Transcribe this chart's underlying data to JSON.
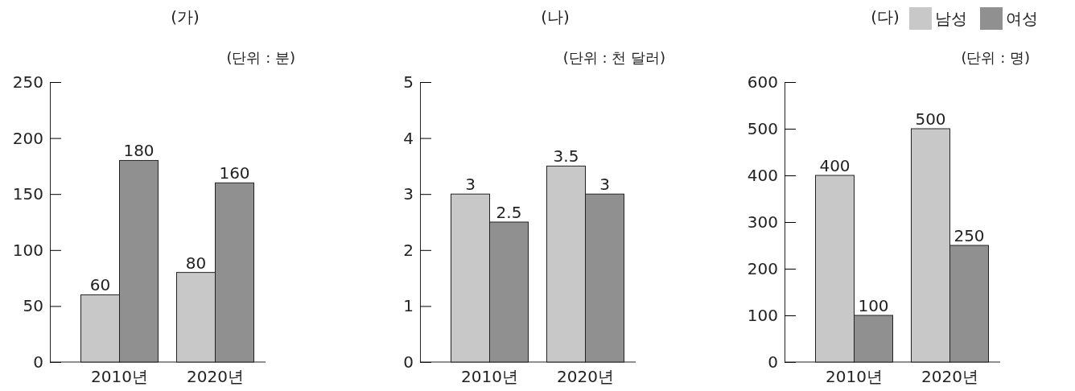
{
  "chart_data": [
    {
      "type": "bar",
      "title": "(가)",
      "subtitle": "(단위 : 분)",
      "categories": [
        "2010년",
        "2020년"
      ],
      "series": [
        {
          "color": "#c8c8c8",
          "values": [
            60,
            80
          ]
        },
        {
          "color": "#909090",
          "values": [
            180,
            160
          ]
        }
      ],
      "ylim": [
        0,
        250
      ],
      "yticks": [
        0,
        50,
        100,
        150,
        200,
        250
      ],
      "data_labels": true,
      "legend": false
    },
    {
      "type": "bar",
      "title": "(나)",
      "subtitle": "(단위 : 천 달러)",
      "categories": [
        "2010년",
        "2020년"
      ],
      "series": [
        {
          "color": "#c8c8c8",
          "values": [
            3,
            3.5
          ]
        },
        {
          "color": "#909090",
          "values": [
            2.5,
            3
          ]
        }
      ],
      "ylim": [
        0,
        5
      ],
      "yticks": [
        0,
        1,
        2,
        3,
        4,
        5
      ],
      "data_labels": true,
      "legend": false
    },
    {
      "type": "bar",
      "title": "(다)",
      "subtitle": "(단위 : 명)",
      "categories": [
        "2010년",
        "2020년"
      ],
      "series": [
        {
          "name": "남성",
          "color": "#c8c8c8",
          "values": [
            400,
            500
          ]
        },
        {
          "name": "여성",
          "color": "#909090",
          "values": [
            100,
            250
          ]
        }
      ],
      "ylim": [
        0,
        600
      ],
      "yticks": [
        0,
        100,
        200,
        300,
        400,
        500,
        600
      ],
      "data_labels": true,
      "legend": "top right"
    }
  ]
}
